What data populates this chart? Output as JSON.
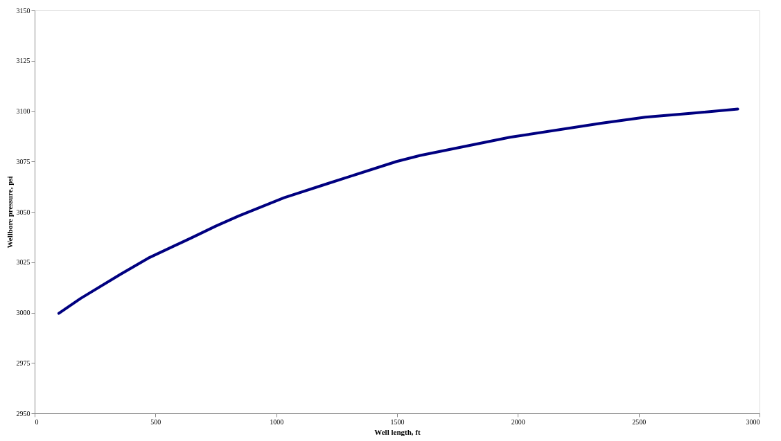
{
  "chart_data": {
    "type": "line",
    "xlabel": "Well length, ft",
    "ylabel": "Wellbore pressure, psi",
    "series": [
      {
        "color": "#000080",
        "x": [
          100,
          190,
          355,
          470,
          647,
          751,
          845,
          1032,
          1212,
          1498,
          1596,
          1967,
          2345,
          2527,
          2722,
          2910
        ],
        "values": [
          2999.6,
          3007,
          3019,
          3027,
          3037,
          3043,
          3048,
          3057,
          3064,
          3075,
          3078,
          3087,
          3094,
          3097,
          3099,
          3101
        ]
      }
    ],
    "xlim": [
      0,
      3000
    ],
    "xticks": [
      0,
      500,
      1000,
      1500,
      2000,
      2500,
      3000
    ],
    "ylim": [
      2950,
      3150
    ],
    "yticks": [
      2950,
      2975,
      3000,
      3025,
      3050,
      3075,
      3100,
      3125,
      3150
    ],
    "grid": false,
    "legend": false,
    "marker": "none",
    "line_style": "solid"
  }
}
